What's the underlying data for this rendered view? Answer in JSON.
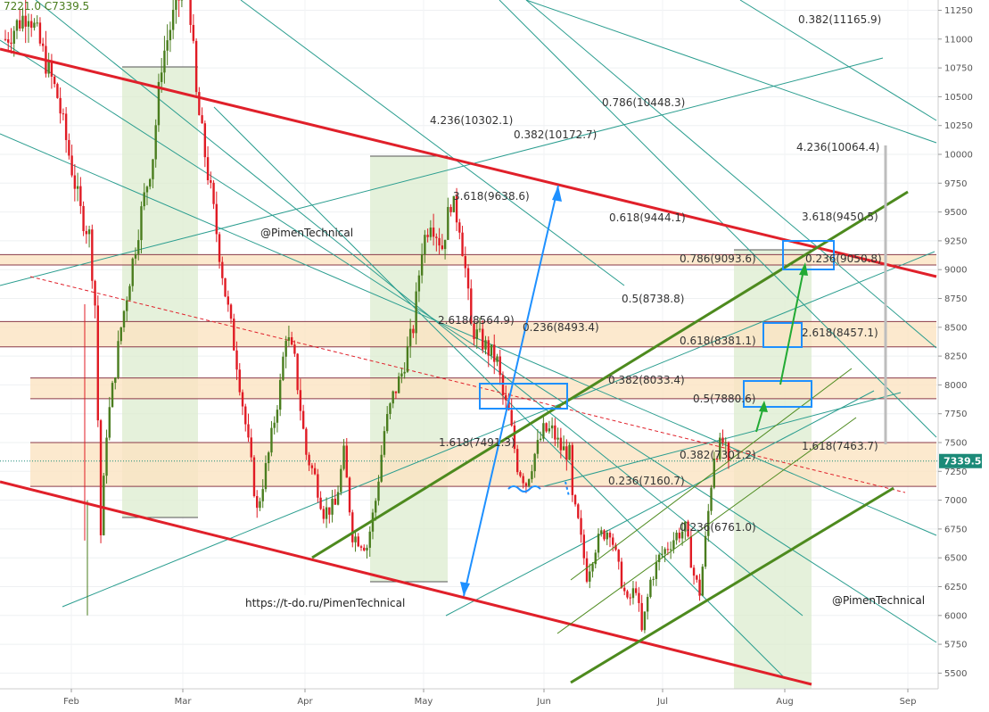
{
  "header": {
    "price_text": "7221.0  C7339.5"
  },
  "watermarks": {
    "top_handle": "@PimenTechnical",
    "bottom_handle": "@PimenTechnical",
    "link": "https://t-do.ru/PimenTechnical"
  },
  "current_price": {
    "label": "7339.5",
    "value": 7339.5,
    "color": "#1b8a78"
  },
  "colors": {
    "bull": "#4a7d1e",
    "bear": "#e01b24",
    "channel": "#e0202a",
    "green_line": "#4d8a1e",
    "teal_line": "#2a9d8f",
    "blue_arrow": "#1e90ff",
    "zone_fill": "#fbe3c2",
    "band_fill": "#dceccf"
  },
  "chart_data": {
    "type": "candlestick",
    "title": "",
    "xlabel": "",
    "ylabel": "",
    "ylim": [
      5380,
      11320
    ],
    "x_ticks": [
      "Feb",
      "Mar",
      "Apr",
      "May",
      "Jun",
      "Jul",
      "Aug",
      "Sep"
    ],
    "y_ticks": [
      5500,
      5750,
      6000,
      6250,
      6500,
      6750,
      7000,
      7250,
      7500,
      7750,
      8000,
      8250,
      8500,
      8750,
      9000,
      9250,
      9500,
      9750,
      10000,
      10250,
      10500,
      10750,
      11000,
      11250
    ],
    "grid": true,
    "price_path": [
      [
        0,
        11000
      ],
      [
        8,
        11250
      ],
      [
        18,
        10500
      ],
      [
        26,
        9500
      ],
      [
        29,
        9300
      ],
      [
        31,
        8700
      ],
      [
        33,
        6700
      ],
      [
        35,
        7600
      ],
      [
        40,
        8500
      ],
      [
        47,
        9500
      ],
      [
        51,
        10000
      ],
      [
        54,
        10800
      ],
      [
        57,
        11100
      ],
      [
        63,
        11600
      ],
      [
        66,
        10500
      ],
      [
        72,
        9500
      ],
      [
        76,
        8800
      ],
      [
        80,
        8200
      ],
      [
        85,
        7300
      ],
      [
        87,
        6900
      ],
      [
        91,
        7400
      ],
      [
        95,
        8000
      ],
      [
        97,
        8450
      ],
      [
        100,
        8200
      ],
      [
        104,
        7400
      ],
      [
        107,
        7200
      ],
      [
        110,
        6900
      ],
      [
        114,
        6950
      ],
      [
        117,
        7400
      ],
      [
        120,
        6700
      ],
      [
        125,
        6600
      ],
      [
        128,
        7000
      ],
      [
        131,
        7600
      ],
      [
        134,
        7900
      ],
      [
        137,
        8100
      ],
      [
        141,
        8500
      ],
      [
        144,
        9200
      ],
      [
        147,
        9450
      ],
      [
        151,
        9200
      ],
      [
        154,
        9600
      ],
      [
        157,
        9400
      ],
      [
        159,
        9000
      ],
      [
        161,
        8500
      ],
      [
        164,
        8400
      ],
      [
        167,
        8300
      ],
      [
        170,
        8200
      ],
      [
        172,
        7900
      ],
      [
        174,
        7750
      ],
      [
        177,
        7300
      ],
      [
        180,
        7150
      ],
      [
        183,
        7400
      ],
      [
        186,
        7600
      ],
      [
        189,
        7600
      ],
      [
        192,
        7450
      ],
      [
        195,
        7400
      ],
      [
        196,
        7000
      ],
      [
        198,
        6800
      ],
      [
        201,
        6350
      ],
      [
        204,
        6600
      ],
      [
        206,
        6700
      ],
      [
        209,
        6750
      ],
      [
        212,
        6400
      ],
      [
        215,
        6100
      ],
      [
        218,
        6250
      ],
      [
        220,
        5850
      ],
      [
        223,
        6300
      ],
      [
        226,
        6500
      ],
      [
        229,
        6600
      ],
      [
        232,
        6700
      ],
      [
        235,
        6750
      ],
      [
        238,
        6350
      ],
      [
        240,
        6200
      ],
      [
        242,
        6650
      ],
      [
        245,
        7400
      ],
      [
        248,
        7500
      ],
      [
        250,
        7339.5
      ]
    ],
    "fib_levels": [
      {
        "label": "0.382(11165.9)",
        "value": 11165.9
      },
      {
        "label": "0.786(10448.3)",
        "value": 10448.3
      },
      {
        "label": "4.236(10302.1)",
        "value": 10302.1
      },
      {
        "label": "0.382(10172.7)",
        "value": 10172.7
      },
      {
        "label": "4.236(10064.4)",
        "value": 10064.4
      },
      {
        "label": "3.618(9638.6)",
        "value": 9638.6
      },
      {
        "label": "3.618(9450.5)",
        "value": 9450.5
      },
      {
        "label": "0.618(9444.1)",
        "value": 9444.1
      },
      {
        "label": "0.786(9093.6)",
        "value": 9093.6
      },
      {
        "label": "0.236(9050.8)",
        "value": 9050.8
      },
      {
        "label": "0.5(8738.8)",
        "value": 8738.8
      },
      {
        "label": "2.618(8564.9)",
        "value": 8564.9
      },
      {
        "label": "0.236(8493.4)",
        "value": 8493.4
      },
      {
        "label": "2.618(8457.1)",
        "value": 8457.1
      },
      {
        "label": "0.618(8381.1)",
        "value": 8381.1
      },
      {
        "label": "0.382(8033.4)",
        "value": 8033.4
      },
      {
        "label": "0.5(7880.6)",
        "value": 7880.6
      },
      {
        "label": "1.618(7491.3)",
        "value": 7491.3
      },
      {
        "label": "1.618(7463.7)",
        "value": 7463.7
      },
      {
        "label": "0.382(7301.2)",
        "value": 7301.2
      },
      {
        "label": "0.236(7160.7)",
        "value": 7160.7
      },
      {
        "label": "0.236(6761.0)",
        "value": 6761.0
      }
    ],
    "zones": [
      {
        "from": 9040,
        "to": 9130
      },
      {
        "from": 8330,
        "to": 8550
      },
      {
        "from": 7880,
        "to": 8060
      },
      {
        "from": 7120,
        "to": 7500
      }
    ]
  }
}
